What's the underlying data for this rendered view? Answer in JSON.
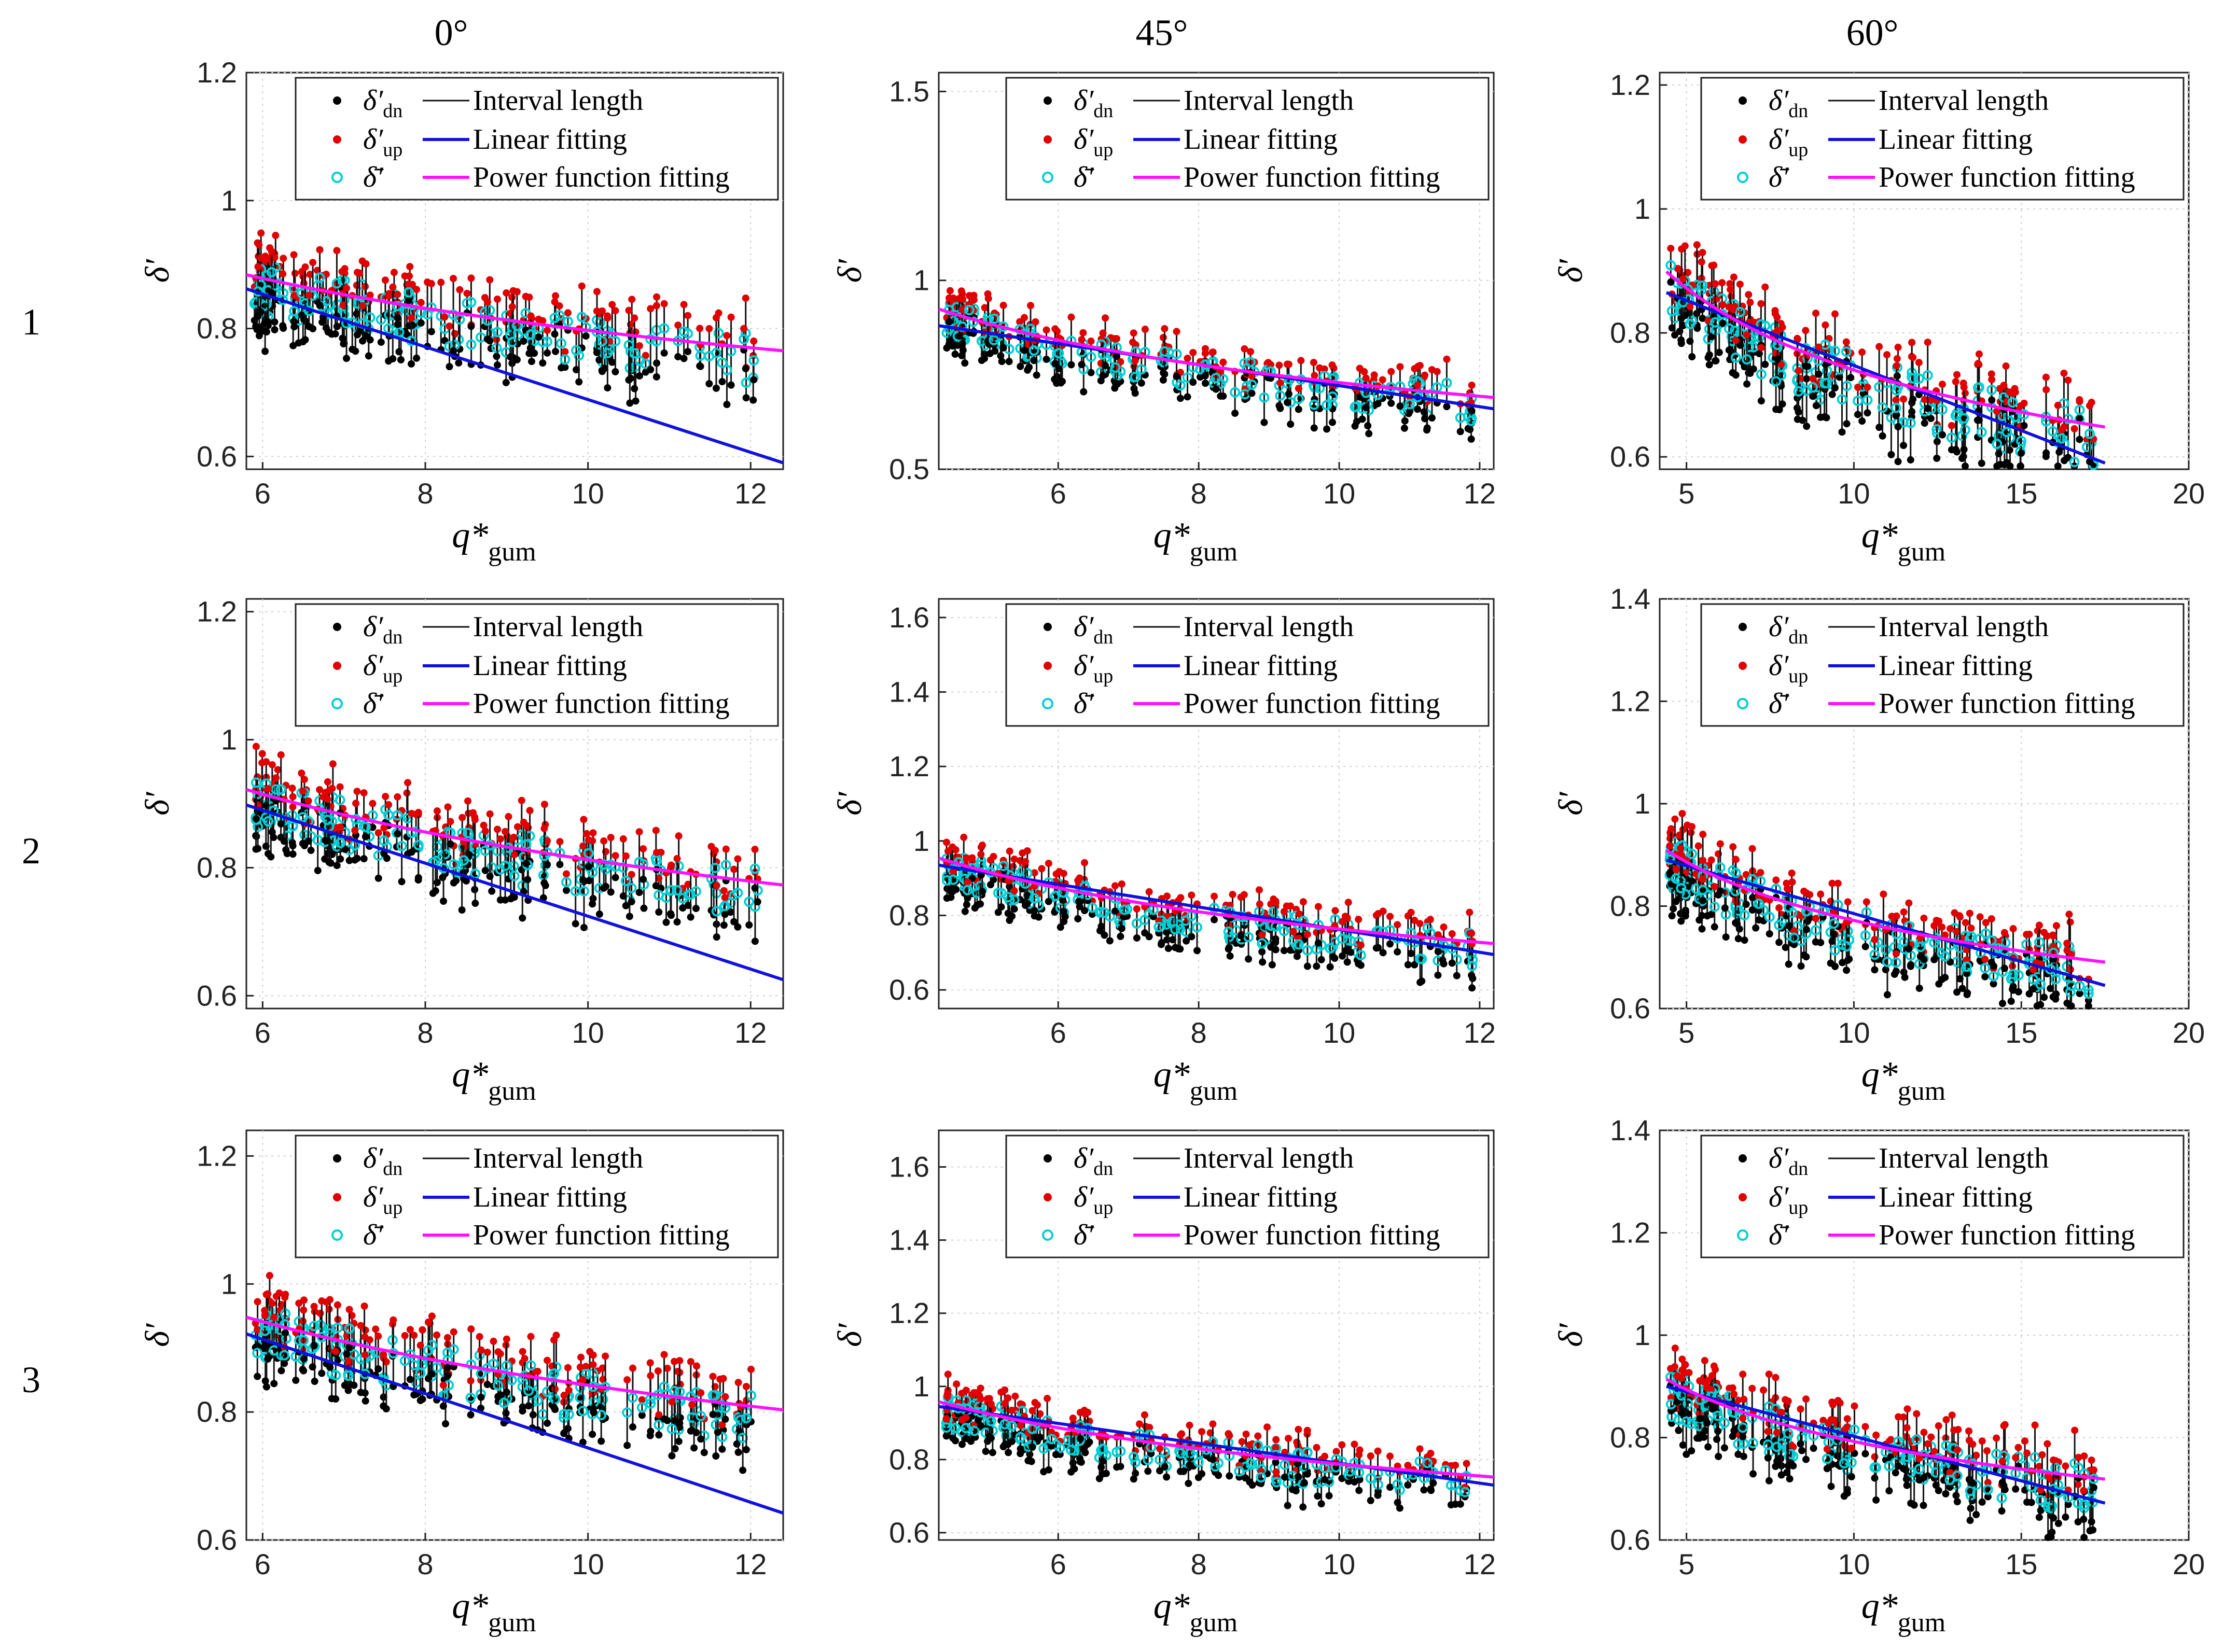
{
  "figure": {
    "col_titles": [
      "0°",
      "45°",
      "60°"
    ],
    "row_labels": [
      "1",
      "2",
      "3"
    ],
    "legend": {
      "sym_dn": "δ′",
      "sub_dn": "dn",
      "sym_up": "δ′",
      "sub_up": "up",
      "sym_mean": "δ̄′",
      "interval": "Interval length",
      "linear": "Linear fitting",
      "power": "Power function fitting"
    },
    "ylabel": "δ′",
    "xlabel_main": "q*",
    "xlabel_sub": "gum"
  },
  "chart_data": [
    {
      "type": "scatter",
      "panel": "0°-1",
      "xlim": [
        5.8,
        12.4
      ],
      "ylim": [
        0.58,
        1.2
      ],
      "xticks": [
        6,
        8,
        10,
        12
      ],
      "yticks": [
        0.6,
        0.8,
        1,
        1.2
      ],
      "ytick_labels": [
        "0.6",
        "0.8",
        "1",
        "1.2"
      ],
      "linear": [
        [
          5.8,
          0.862
        ],
        [
          12.4,
          0.59
        ]
      ],
      "power_fit": {
        "a": 0.884,
        "b": -0.19
      },
      "noise": 0.05,
      "seed": 11,
      "legend": "top-right",
      "title": "0°",
      "row": "1"
    },
    {
      "type": "scatter",
      "panel": "45°-1",
      "xlim": [
        4.3,
        12.2
      ],
      "ylim": [
        0.5,
        1.55
      ],
      "xticks": [
        6,
        8,
        10,
        12
      ],
      "yticks": [
        0.5,
        1,
        1.5
      ],
      "ytick_labels": [
        "0.5",
        "1",
        "1.5"
      ],
      "linear": [
        [
          4.3,
          0.88
        ],
        [
          12.2,
          0.66
        ]
      ],
      "power_fit": {
        "a": 0.924,
        "b": -0.28
      },
      "noise": 0.06,
      "seed": 23,
      "legend": "top-right",
      "title": "45°",
      "row": "1"
    },
    {
      "type": "scatter",
      "panel": "60°-1",
      "xlim": [
        4.2,
        20
      ],
      "ylim": [
        0.58,
        1.22
      ],
      "xticks": [
        5,
        10,
        15,
        20
      ],
      "yticks": [
        0.6,
        0.8,
        1,
        1.2
      ],
      "ytick_labels": [
        "0.6",
        "0.8",
        "1",
        "1.2"
      ],
      "linear": [
        [
          4.4,
          0.865
        ],
        [
          17.5,
          0.59
        ]
      ],
      "power_fit": {
        "a": 0.899,
        "b": -0.237
      },
      "noise": 0.06,
      "seed": 37,
      "legend": "top-right",
      "title": "60°",
      "row": "1"
    },
    {
      "type": "scatter",
      "panel": "0°-2",
      "xlim": [
        5.8,
        12.4
      ],
      "ylim": [
        0.58,
        1.22
      ],
      "xticks": [
        6,
        8,
        10,
        12
      ],
      "yticks": [
        0.6,
        0.8,
        1,
        1.2
      ],
      "ytick_labels": [
        "0.6",
        "0.8",
        "1",
        "1.2"
      ],
      "linear": [
        [
          5.8,
          0.898
        ],
        [
          12.4,
          0.625
        ]
      ],
      "power_fit": {
        "a": 0.922,
        "b": -0.232
      },
      "noise": 0.05,
      "seed": 41,
      "legend": "top-right",
      "title": "0°",
      "row": "2"
    },
    {
      "type": "scatter",
      "panel": "45°-2",
      "xlim": [
        4.3,
        12.2
      ],
      "ylim": [
        0.55,
        1.65
      ],
      "xticks": [
        6,
        8,
        10,
        12
      ],
      "yticks": [
        0.6,
        0.8,
        1,
        1.2,
        1.4,
        1.6
      ],
      "ytick_labels": [
        "0.6",
        "0.8",
        "1",
        "1.2",
        "1.4",
        "1.6"
      ],
      "linear": [
        [
          4.3,
          0.935
        ],
        [
          12.2,
          0.695
        ]
      ],
      "power_fit": {
        "a": 0.954,
        "b": -0.264
      },
      "noise": 0.06,
      "seed": 53,
      "legend": "top-right",
      "title": "45°",
      "row": "2"
    },
    {
      "type": "scatter",
      "panel": "60°-2",
      "xlim": [
        4.2,
        20
      ],
      "ylim": [
        0.6,
        1.4
      ],
      "xticks": [
        5,
        10,
        15,
        20
      ],
      "yticks": [
        0.6,
        0.8,
        1,
        1.2,
        1.4
      ],
      "ytick_labels": [
        "0.6",
        "0.8",
        "1",
        "1.2",
        "1.4"
      ],
      "linear": [
        [
          4.4,
          0.89
        ],
        [
          17.5,
          0.645
        ]
      ],
      "power_fit": {
        "a": 0.909,
        "b": -0.199
      },
      "noise": 0.06,
      "seed": 67,
      "legend": "top-right",
      "title": "60°",
      "row": "2"
    },
    {
      "type": "scatter",
      "panel": "0°-3",
      "xlim": [
        5.8,
        12.4
      ],
      "ylim": [
        0.6,
        1.24
      ],
      "xticks": [
        6,
        8,
        10,
        12
      ],
      "yticks": [
        0.6,
        0.8,
        1,
        1.2
      ],
      "ytick_labels": [
        "0.6",
        "0.8",
        "1",
        "1.2"
      ],
      "linear": [
        [
          5.8,
          0.922
        ],
        [
          12.4,
          0.642
        ]
      ],
      "power_fit": {
        "a": 0.948,
        "b": -0.218
      },
      "noise": 0.05,
      "seed": 71,
      "legend": "top-right",
      "title": "0°",
      "row": "3"
    },
    {
      "type": "scatter",
      "panel": "45°-3",
      "xlim": [
        4.3,
        12.2
      ],
      "ylim": [
        0.58,
        1.7
      ],
      "xticks": [
        6,
        8,
        10,
        12
      ],
      "yticks": [
        0.6,
        0.8,
        1,
        1.2,
        1.4,
        1.6
      ],
      "ytick_labels": [
        "0.6",
        "0.8",
        "1",
        "1.2",
        "1.4",
        "1.6"
      ],
      "linear": [
        [
          4.3,
          0.945
        ],
        [
          12.2,
          0.73
        ]
      ],
      "power_fit": {
        "a": 0.958,
        "b": -0.232
      },
      "noise": 0.06,
      "seed": 83,
      "legend": "top-right",
      "title": "45°",
      "row": "3"
    },
    {
      "type": "scatter",
      "panel": "60°-3",
      "xlim": [
        4.2,
        20
      ],
      "ylim": [
        0.6,
        1.4
      ],
      "xticks": [
        5,
        10,
        15,
        20
      ],
      "yticks": [
        0.6,
        0.8,
        1,
        1.2,
        1.4
      ],
      "ytick_labels": [
        "0.6",
        "0.8",
        "1",
        "1.2",
        "1.4"
      ],
      "linear": [
        [
          4.4,
          0.9
        ],
        [
          17.5,
          0.672
        ]
      ],
      "power_fit": {
        "a": 0.914,
        "b": -0.174
      },
      "noise": 0.06,
      "seed": 97,
      "legend": "top-right",
      "title": "60°",
      "row": "3"
    }
  ]
}
